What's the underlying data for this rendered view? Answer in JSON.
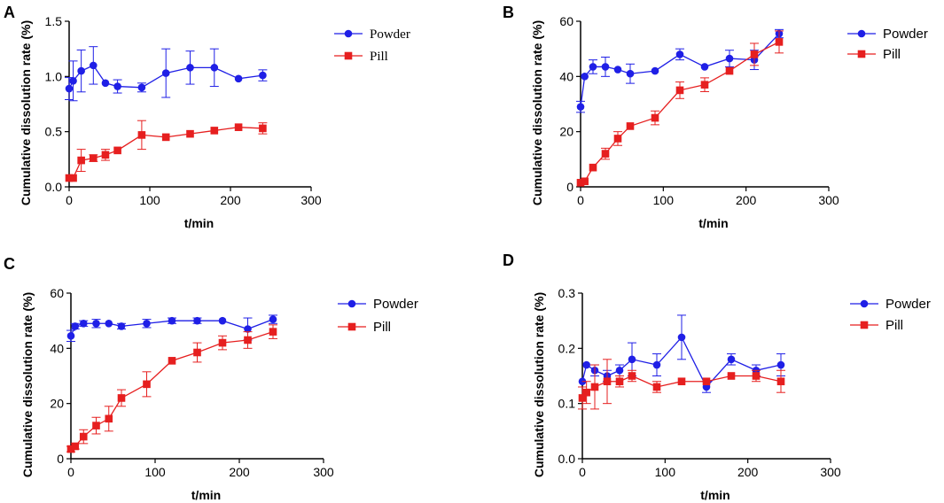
{
  "chart_data": [
    {
      "panel": "A",
      "type": "line",
      "xlabel": "t/min",
      "ylabel": "Cumulative dissolution rate (%)",
      "xlim": [
        0,
        300
      ],
      "ylim": [
        0,
        1.5
      ],
      "xticks": [
        0,
        100,
        200,
        300
      ],
      "xtick_labels": [
        "0",
        "100",
        "200",
        "300"
      ],
      "yticks": [
        0,
        0.5,
        1.0,
        1.5
      ],
      "ytick_labels": [
        "0.0",
        "0.5",
        "1.0",
        "1.5"
      ],
      "legend_position": "top-right",
      "legend_font": "serif",
      "series": [
        {
          "name": "Powder",
          "color": "#1f1fe6",
          "marker": "circle",
          "x": [
            0,
            5,
            15,
            30,
            45,
            60,
            90,
            120,
            150,
            180,
            210,
            240
          ],
          "y": [
            0.89,
            0.96,
            1.05,
            1.1,
            0.94,
            0.91,
            0.9,
            1.03,
            1.08,
            1.08,
            0.98,
            1.01
          ],
          "err": [
            0.1,
            0.18,
            0.19,
            0.17,
            0.0,
            0.06,
            0.04,
            0.22,
            0.15,
            0.17,
            0.0,
            0.05
          ]
        },
        {
          "name": "Pill",
          "color": "#e61f1f",
          "marker": "square",
          "x": [
            0,
            5,
            15,
            30,
            45,
            60,
            90,
            120,
            150,
            180,
            210,
            240
          ],
          "y": [
            0.08,
            0.08,
            0.24,
            0.26,
            0.29,
            0.33,
            0.47,
            0.45,
            0.48,
            0.51,
            0.54,
            0.53
          ],
          "err": [
            0.0,
            0.0,
            0.1,
            0.03,
            0.05,
            0.0,
            0.13,
            0.0,
            0.0,
            0.0,
            0.0,
            0.05
          ]
        }
      ]
    },
    {
      "panel": "B",
      "type": "line",
      "xlabel": "t/min",
      "ylabel": "Cumulative dissolution rate (%)",
      "xlim": [
        0,
        300
      ],
      "ylim": [
        0,
        60
      ],
      "xticks": [
        0,
        100,
        200,
        300
      ],
      "xtick_labels": [
        "0",
        "100",
        "200",
        "300"
      ],
      "yticks": [
        0,
        20,
        40,
        60
      ],
      "ytick_labels": [
        "0",
        "20",
        "40",
        "60"
      ],
      "legend_position": "top-right",
      "legend_font": "sans",
      "series": [
        {
          "name": "Powder",
          "color": "#1f1fe6",
          "marker": "circle",
          "x": [
            0,
            5,
            15,
            30,
            45,
            60,
            90,
            120,
            150,
            180,
            210,
            240
          ],
          "y": [
            29,
            40,
            43.5,
            43.5,
            42.5,
            41,
            42,
            48,
            43.5,
            46.5,
            46,
            55.5
          ],
          "err": [
            2.0,
            0.0,
            2.5,
            3.5,
            0.0,
            3.5,
            0.0,
            2.0,
            0.0,
            3.0,
            3.5,
            1.5
          ]
        },
        {
          "name": "Pill",
          "color": "#e61f1f",
          "marker": "square",
          "x": [
            0,
            5,
            15,
            30,
            45,
            60,
            90,
            120,
            150,
            180,
            210,
            240
          ],
          "y": [
            1.5,
            2,
            7,
            12,
            17.5,
            22,
            25,
            35,
            37,
            42,
            48,
            52.5
          ],
          "err": [
            0.0,
            0.0,
            0.0,
            2.0,
            2.5,
            0.0,
            2.5,
            3.0,
            2.5,
            0.0,
            4.0,
            4.0
          ]
        }
      ]
    },
    {
      "panel": "C",
      "type": "line",
      "xlabel": "t/min",
      "ylabel": "Cumulative dissolution rate (%)",
      "xlim": [
        0,
        300
      ],
      "ylim": [
        0,
        60
      ],
      "xticks": [
        0,
        100,
        200,
        300
      ],
      "xtick_labels": [
        "0",
        "100",
        "200",
        "300"
      ],
      "yticks": [
        0,
        20,
        40,
        60
      ],
      "ytick_labels": [
        "0",
        "20",
        "40",
        "60"
      ],
      "legend_position": "top-right",
      "legend_font": "sans",
      "series": [
        {
          "name": "Powder",
          "color": "#1f1fe6",
          "marker": "circle",
          "x": [
            0,
            5,
            15,
            30,
            45,
            60,
            90,
            120,
            150,
            180,
            210,
            240
          ],
          "y": [
            44.5,
            48,
            49,
            49,
            49,
            48,
            49,
            50,
            50,
            50,
            47,
            50.5
          ],
          "err": [
            2.0,
            1.0,
            1.0,
            1.5,
            0.0,
            1.0,
            1.5,
            1.0,
            1.0,
            0.0,
            4.0,
            1.5
          ]
        },
        {
          "name": "Pill",
          "color": "#e61f1f",
          "marker": "square",
          "x": [
            0,
            5,
            15,
            30,
            45,
            60,
            90,
            120,
            150,
            180,
            210,
            240
          ],
          "y": [
            3.5,
            4.5,
            8,
            12,
            14.5,
            22,
            27,
            35.5,
            38.5,
            42,
            43,
            46
          ],
          "err": [
            1.0,
            1.0,
            2.5,
            3.0,
            4.5,
            3.0,
            4.5,
            0.0,
            3.5,
            2.5,
            3.0,
            2.5
          ]
        }
      ]
    },
    {
      "panel": "D",
      "type": "line",
      "xlabel": "t/min",
      "ylabel": "Cumulative dissolution rate (%)",
      "xlim": [
        0,
        300
      ],
      "ylim": [
        0,
        0.3
      ],
      "xticks": [
        0,
        100,
        200,
        300
      ],
      "xtick_labels": [
        "0",
        "100",
        "200",
        "300"
      ],
      "yticks": [
        0,
        0.1,
        0.2,
        0.3
      ],
      "ytick_labels": [
        "0.0",
        "0.1",
        "0.2",
        "0.3"
      ],
      "legend_position": "top-right",
      "legend_font": "sans",
      "series": [
        {
          "name": "Powder",
          "color": "#1f1fe6",
          "marker": "circle",
          "x": [
            0,
            5,
            15,
            30,
            45,
            60,
            90,
            120,
            150,
            180,
            210,
            240
          ],
          "y": [
            0.14,
            0.17,
            0.16,
            0.15,
            0.16,
            0.18,
            0.17,
            0.22,
            0.13,
            0.18,
            0.16,
            0.17
          ],
          "err": [
            0.0,
            0.0,
            0.01,
            0.01,
            0.01,
            0.03,
            0.02,
            0.04,
            0.01,
            0.01,
            0.01,
            0.02
          ]
        },
        {
          "name": "Pill",
          "color": "#e61f1f",
          "marker": "square",
          "x": [
            0,
            5,
            15,
            30,
            45,
            60,
            90,
            120,
            150,
            180,
            210,
            240
          ],
          "y": [
            0.11,
            0.12,
            0.13,
            0.14,
            0.14,
            0.15,
            0.13,
            0.14,
            0.14,
            0.15,
            0.15,
            0.14
          ],
          "err": [
            0.02,
            0.02,
            0.04,
            0.04,
            0.01,
            0.01,
            0.01,
            0.0,
            0.0,
            0.0,
            0.01,
            0.02
          ]
        }
      ]
    }
  ]
}
